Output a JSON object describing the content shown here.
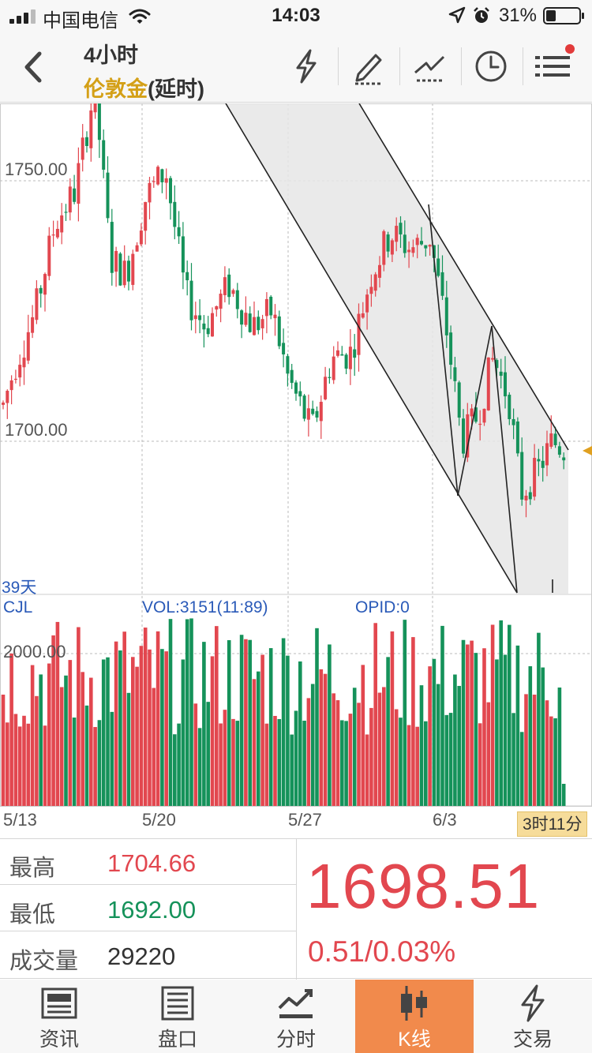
{
  "status_bar": {
    "carrier": "中国电信",
    "time": "14:03",
    "battery": "31%"
  },
  "header": {
    "period": "4小时",
    "instrument": "伦敦金",
    "delay_note": "(延时)",
    "tools": [
      "flash-icon",
      "draw-pen-icon",
      "trendline-icon",
      "clock-icon",
      "menu-icon"
    ]
  },
  "chart": {
    "price_labels": [
      "1750.00",
      "1700.00"
    ],
    "days_label": "39天",
    "volume_header": {
      "name": "CJL",
      "vol": "VOL:3151(11:89)",
      "opid": "OPID:0"
    },
    "volume_scale_label": "2000.00",
    "date_labels": [
      "5/13",
      "5/20",
      "5/27",
      "6/3"
    ],
    "countdown": "3时11分",
    "colors": {
      "up": "#e2474f",
      "down": "#15925a",
      "channel_fill": "#e6e6e6",
      "line": "#222222",
      "grid": "#bbbbbb"
    }
  },
  "chart_data": {
    "type": "candlestick",
    "timeframe": "4H",
    "y_range": [
      1657,
      1770
    ],
    "x_labels": [
      "5/13",
      "5/20",
      "5/27",
      "6/3"
    ],
    "last_price": 1698.51,
    "annotations": [
      "descending channel",
      "zigzag trendlines"
    ],
    "volume_range": [
      0,
      3000
    ]
  },
  "quote": {
    "high_label": "最高",
    "high_value": "1704.66",
    "low_label": "最低",
    "low_value": "1692.00",
    "volume_label": "成交量",
    "volume_value": "29220",
    "last_price": "1698.51",
    "change": "0.51/0.03%"
  },
  "tabs": [
    {
      "label": "资讯",
      "icon": "news-icon"
    },
    {
      "label": "盘口",
      "icon": "orderbook-icon"
    },
    {
      "label": "分时",
      "icon": "timeshare-icon"
    },
    {
      "label": "K线",
      "icon": "kline-icon",
      "active": true
    },
    {
      "label": "交易",
      "icon": "trade-icon"
    }
  ]
}
